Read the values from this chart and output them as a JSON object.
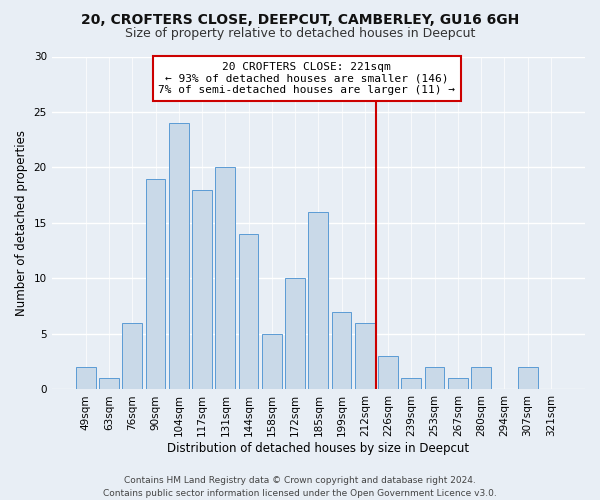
{
  "title1": "20, CROFTERS CLOSE, DEEPCUT, CAMBERLEY, GU16 6GH",
  "title2": "Size of property relative to detached houses in Deepcut",
  "xlabel": "Distribution of detached houses by size in Deepcut",
  "ylabel": "Number of detached properties",
  "bar_labels": [
    "49sqm",
    "63sqm",
    "76sqm",
    "90sqm",
    "104sqm",
    "117sqm",
    "131sqm",
    "144sqm",
    "158sqm",
    "172sqm",
    "185sqm",
    "199sqm",
    "212sqm",
    "226sqm",
    "239sqm",
    "253sqm",
    "267sqm",
    "280sqm",
    "294sqm",
    "307sqm",
    "321sqm"
  ],
  "bar_values": [
    2,
    1,
    6,
    19,
    24,
    18,
    20,
    14,
    5,
    10,
    16,
    7,
    6,
    3,
    1,
    2,
    1,
    2,
    0,
    2,
    0
  ],
  "bar_color": "#c9d9e8",
  "bar_edgecolor": "#5b9bd5",
  "ylim": [
    0,
    30
  ],
  "yticks": [
    0,
    5,
    10,
    15,
    20,
    25,
    30
  ],
  "vline_x": 12.5,
  "vline_color": "#cc0000",
  "annotation_text": "20 CROFTERS CLOSE: 221sqm\n← 93% of detached houses are smaller (146)\n7% of semi-detached houses are larger (11) →",
  "footer": "Contains HM Land Registry data © Crown copyright and database right 2024.\nContains public sector information licensed under the Open Government Licence v3.0.",
  "bg_color": "#e8eef5",
  "plot_bg_color": "#e8eef5",
  "grid_color": "#ffffff",
  "title1_fontsize": 10,
  "title2_fontsize": 9,
  "axis_label_fontsize": 8.5,
  "tick_fontsize": 7.5,
  "annotation_fontsize": 8,
  "footer_fontsize": 6.5
}
